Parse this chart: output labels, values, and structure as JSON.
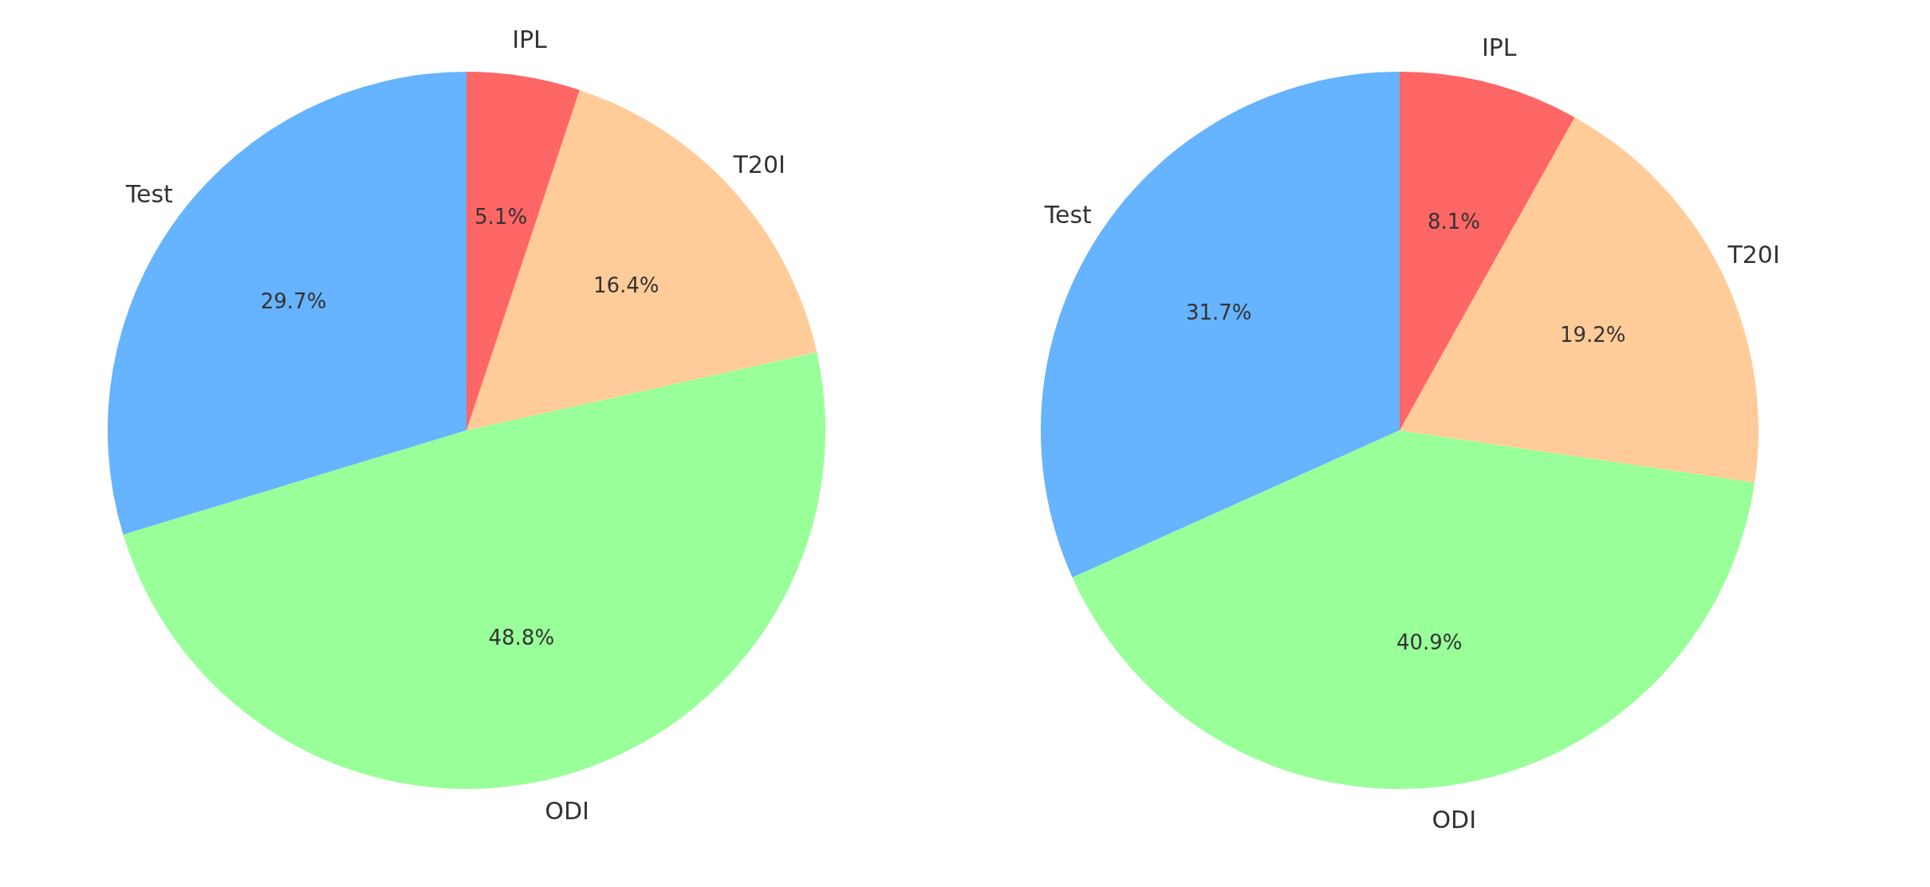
{
  "chart_data": [
    {
      "type": "pie",
      "categories": [
        "Test",
        "ODI",
        "T20I",
        "IPL"
      ],
      "values": [
        29.7,
        48.8,
        16.4,
        5.1
      ],
      "colors": [
        "#66b3ff",
        "#99ff99",
        "#ffcc99",
        "#ff6666"
      ],
      "value_labels": [
        "29.7%",
        "48.8%",
        "16.4%",
        "5.1%"
      ],
      "legend": false
    },
    {
      "type": "pie",
      "categories": [
        "Test",
        "ODI",
        "T20I",
        "IPL"
      ],
      "values": [
        31.7,
        40.9,
        19.2,
        8.1
      ],
      "colors": [
        "#66b3ff",
        "#99ff99",
        "#ffcc99",
        "#ff6666"
      ],
      "value_labels": [
        "31.7%",
        "40.9%",
        "19.2%",
        "8.1%"
      ],
      "legend": false
    }
  ]
}
